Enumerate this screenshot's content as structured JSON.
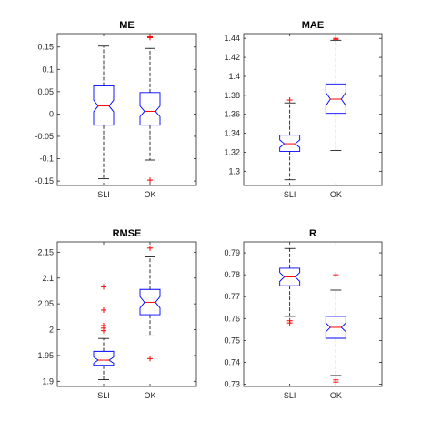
{
  "chart_data": [
    {
      "type": "box",
      "title": "ME",
      "categories": [
        "SLI",
        "OK"
      ],
      "ylim": [
        -0.16,
        0.18
      ],
      "yticks": [
        -0.15,
        -0.1,
        -0.05,
        0,
        0.05,
        0.1,
        0.15
      ],
      "ytick_labels": [
        "-0.15",
        "-0.1",
        "-0.05",
        "0",
        "0.05",
        "0.1",
        "0.15"
      ],
      "boxes": [
        {
          "whisker_low": -0.145,
          "q1": -0.025,
          "median": 0.018,
          "q3": 0.063,
          "whisker_high": 0.152,
          "notch_low": 0.005,
          "notch_high": 0.031,
          "outliers": []
        },
        {
          "whisker_low": -0.103,
          "q1": -0.025,
          "median": 0.006,
          "q3": 0.048,
          "whisker_high": 0.147,
          "notch_low": -0.006,
          "notch_high": 0.018,
          "outliers": [
            0.171,
            0.173,
            -0.148
          ]
        }
      ]
    },
    {
      "type": "box",
      "title": "MAE",
      "categories": [
        "SLI",
        "OK"
      ],
      "ylim": [
        1.285,
        1.445
      ],
      "yticks": [
        1.3,
        1.32,
        1.34,
        1.36,
        1.38,
        1.4,
        1.42,
        1.44
      ],
      "ytick_labels": [
        "1.3",
        "1.32",
        "1.34",
        "1.36",
        "1.38",
        "1.4",
        "1.42",
        "1.44"
      ],
      "boxes": [
        {
          "whisker_low": 1.291,
          "q1": 1.321,
          "median": 1.329,
          "q3": 1.338,
          "whisker_high": 1.372,
          "notch_low": 1.325,
          "notch_high": 1.333,
          "outliers": [
            1.375
          ]
        },
        {
          "whisker_low": 1.322,
          "q1": 1.361,
          "median": 1.376,
          "q3": 1.392,
          "whisker_high": 1.438,
          "notch_low": 1.369,
          "notch_high": 1.383,
          "outliers": [
            1.439,
            1.44
          ]
        }
      ]
    },
    {
      "type": "box",
      "title": "RMSE",
      "categories": [
        "SLI",
        "OK"
      ],
      "ylim": [
        1.89,
        2.17
      ],
      "yticks": [
        1.9,
        1.95,
        2,
        2.05,
        2.1,
        2.15
      ],
      "ytick_labels": [
        "1.9",
        "1.95",
        "2",
        "2.05",
        "2.1",
        "2.15"
      ],
      "boxes": [
        {
          "whisker_low": 1.903,
          "q1": 1.931,
          "median": 1.941,
          "q3": 1.958,
          "whisker_high": 1.983,
          "notch_low": 1.935,
          "notch_high": 1.947,
          "outliers": [
            1.998,
            2.003,
            2.008,
            2.038,
            2.083
          ]
        },
        {
          "whisker_low": 1.988,
          "q1": 2.029,
          "median": 2.053,
          "q3": 2.078,
          "whisker_high": 2.141,
          "notch_low": 2.042,
          "notch_high": 2.064,
          "outliers": [
            2.158,
            1.944
          ]
        }
      ]
    },
    {
      "type": "box",
      "title": "R",
      "categories": [
        "SLI",
        "OK"
      ],
      "ylim": [
        0.729,
        0.795
      ],
      "yticks": [
        0.73,
        0.74,
        0.75,
        0.76,
        0.77,
        0.78,
        0.79
      ],
      "ytick_labels": [
        "0.73",
        "0.74",
        "0.75",
        "0.76",
        "0.77",
        "0.78",
        "0.79"
      ],
      "boxes": [
        {
          "whisker_low": 0.761,
          "q1": 0.775,
          "median": 0.779,
          "q3": 0.783,
          "whisker_high": 0.792,
          "notch_low": 0.777,
          "notch_high": 0.781,
          "outliers": [
            0.759,
            0.758
          ]
        },
        {
          "whisker_low": 0.734,
          "q1": 0.751,
          "median": 0.756,
          "q3": 0.761,
          "whisker_high": 0.773,
          "notch_low": 0.754,
          "notch_high": 0.758,
          "outliers": [
            0.78,
            0.732,
            0.731
          ]
        }
      ]
    }
  ]
}
